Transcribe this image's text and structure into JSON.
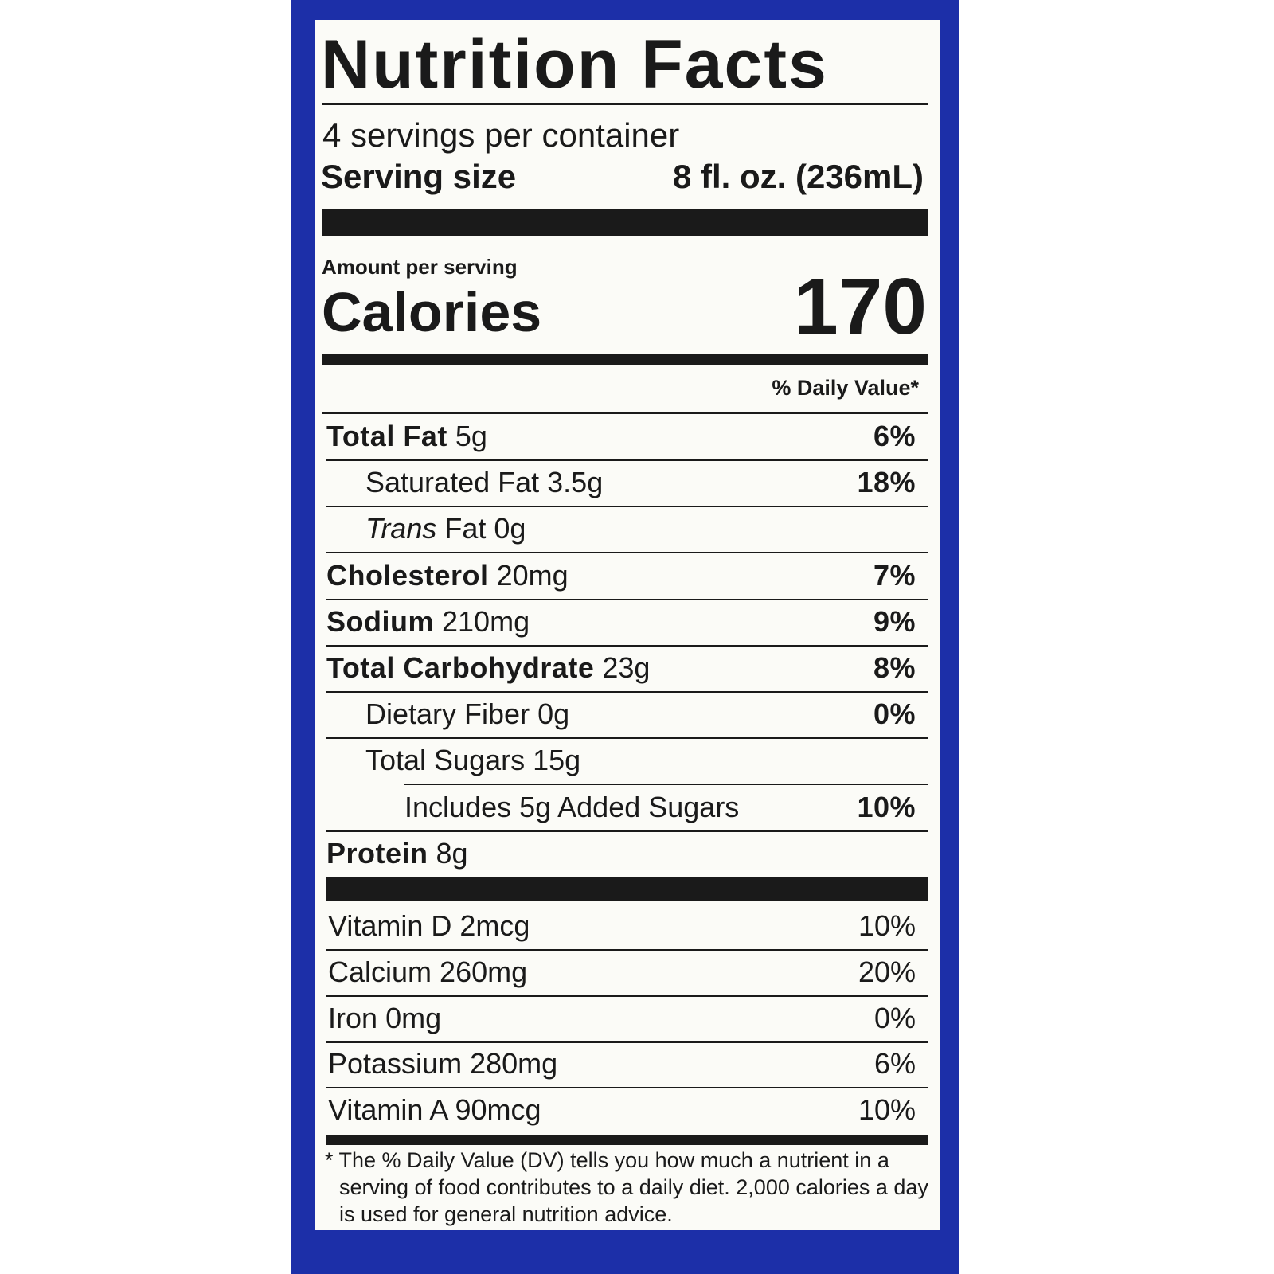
{
  "label": {
    "title": "Nutrition Facts",
    "servings": "4 servings per container",
    "serving_size": {
      "label": "Serving size",
      "value": "8 fl. oz. (236mL)"
    },
    "amount_per_serving": "Amount per serving",
    "calories": {
      "label": "Calories",
      "value": "170"
    },
    "daily_value_header": "% Daily Value*",
    "nutrients": [
      {
        "name": "Total Fat",
        "amount": "5g",
        "dv": "6%"
      },
      {
        "name": "Saturated Fat",
        "amount": "3.5g",
        "dv": "18%"
      },
      {
        "name_italic": "Trans",
        "name": "Fat",
        "amount": "0g"
      },
      {
        "name": "Cholesterol",
        "amount": "20mg",
        "dv": "7%"
      },
      {
        "name": "Sodium",
        "amount": "210mg",
        "dv": "9%"
      },
      {
        "name": "Total Carbohydrate",
        "amount": "23g",
        "dv": "8%"
      },
      {
        "name": "Dietary Fiber",
        "amount": "0g",
        "dv": "0%"
      },
      {
        "name": "Total Sugars",
        "amount": "15g"
      },
      {
        "name": "Includes 5g Added Sugars",
        "dv": "10%"
      },
      {
        "name": "Protein",
        "amount": "8g"
      }
    ],
    "vitamins": [
      {
        "name": "Vitamin D",
        "amount": "2mcg",
        "dv": "10%"
      },
      {
        "name": "Calcium",
        "amount": "260mg",
        "dv": "20%"
      },
      {
        "name": "Iron",
        "amount": "0mg",
        "dv": "0%"
      },
      {
        "name": "Potassium",
        "amount": "280mg",
        "dv": "6%"
      },
      {
        "name": "Vitamin A",
        "amount": "90mcg",
        "dv": "10%"
      }
    ],
    "footnote": "* The % Daily Value (DV) tells you how much a nutrient in a serving of food contributes to a daily diet. 2,000 calories a day is used for general nutrition advice."
  }
}
